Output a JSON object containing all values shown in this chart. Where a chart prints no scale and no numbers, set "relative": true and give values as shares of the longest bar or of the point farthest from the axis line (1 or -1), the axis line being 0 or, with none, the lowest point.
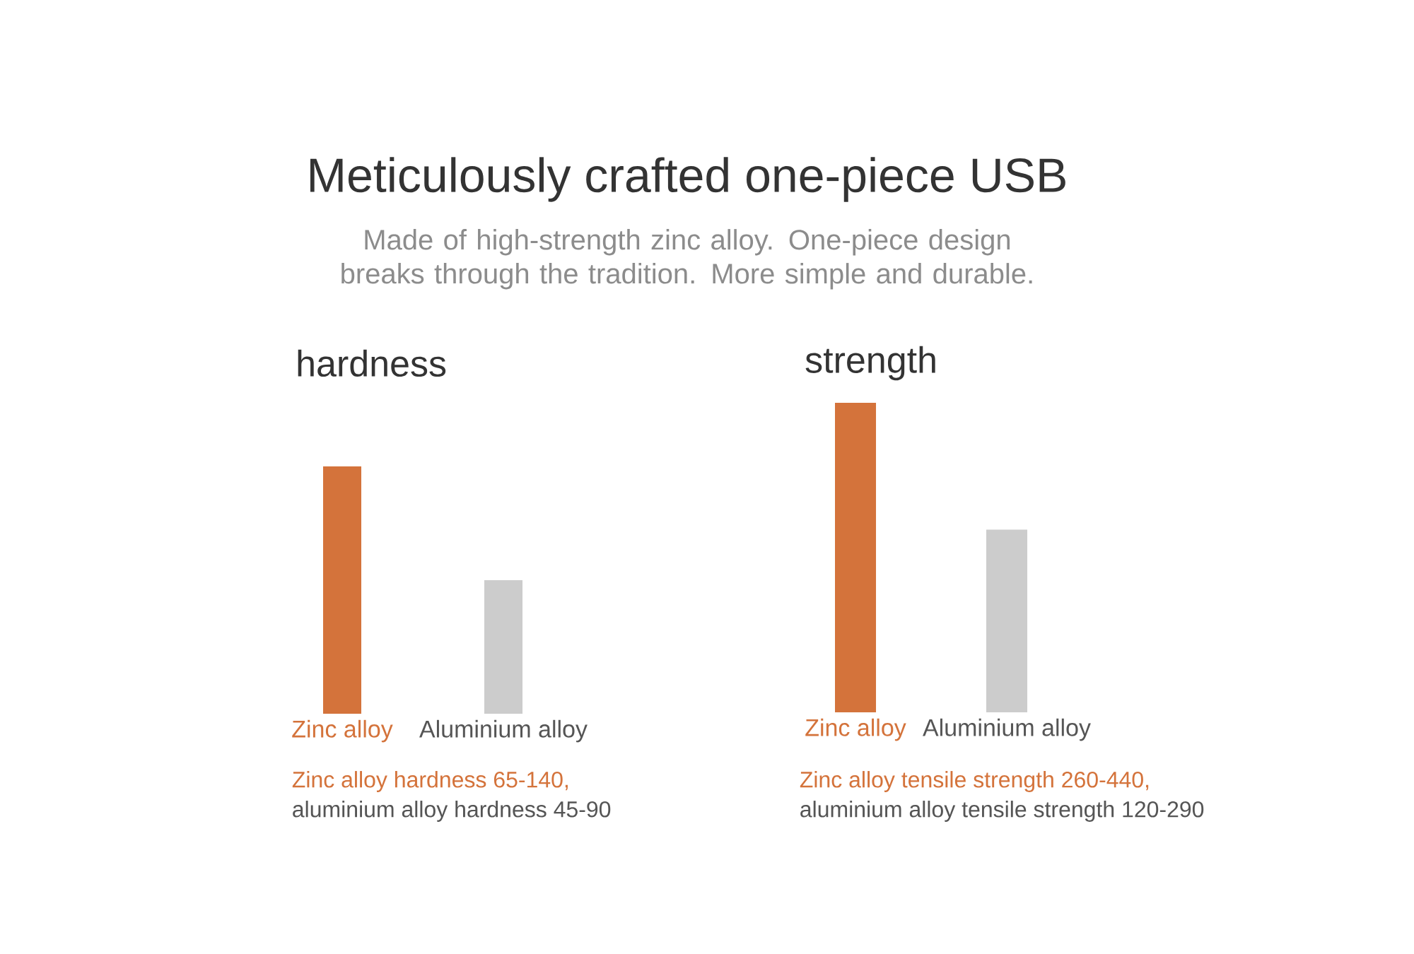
{
  "chart_data": [
    {
      "type": "other",
      "title": "Meticulously crafted one-piece USB",
      "subtitle": "Made of high-strength zinc alloy. One-piece design breaks through the tradition. More simple and durable."
    },
    {
      "type": "bar",
      "title": "hardness",
      "categories": [
        "Zinc alloy",
        "Aluminium alloy"
      ],
      "values": [
        1,
        0.54
      ],
      "colors": [
        "#d4733b",
        "#cccccc"
      ],
      "relative": true,
      "annotations": [
        "Zinc alloy hardness 65-140,",
        "aluminium alloy hardness 45-90"
      ]
    },
    {
      "type": "bar",
      "title": "strength",
      "categories": [
        "Zinc alloy",
        "Aluminium alloy"
      ],
      "values": [
        1,
        0.59
      ],
      "colors": [
        "#d4733b",
        "#cccccc"
      ],
      "relative": true,
      "annotations": [
        "Zinc alloy tensile strength 260-440,",
        "aluminium alloy tensile strength 120-290"
      ]
    }
  ]
}
